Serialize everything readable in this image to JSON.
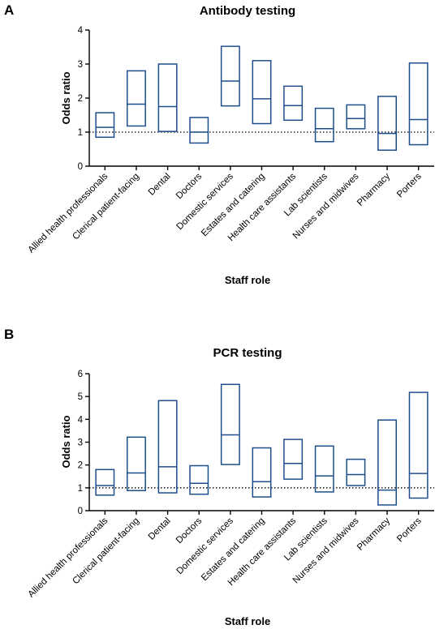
{
  "colors": {
    "box": "#1f4e8c",
    "axis": "#000000"
  },
  "chart_data": [
    {
      "type": "box",
      "panel_label": "A",
      "title": "Antibody testing",
      "xlabel": "Staff role",
      "ylabel": "Odds ratio",
      "ylim": [
        0,
        4
      ],
      "yticks": [
        "0",
        "1",
        "2",
        "3",
        "4"
      ],
      "reference_line": 1,
      "categories": [
        "Allied health professionals",
        "Clerical patient-facing",
        "Dental",
        "Doctors",
        "Domestic services",
        "Estates and catering",
        "Health care assistants",
        "Lab scientists",
        "Nurses and midwives",
        "Pharmacy",
        "Porters"
      ],
      "lower": [
        0.85,
        1.18,
        1.02,
        0.68,
        1.77,
        1.25,
        1.35,
        0.72,
        1.1,
        0.47,
        0.63
      ],
      "median": [
        1.14,
        1.82,
        1.75,
        1.0,
        2.5,
        1.98,
        1.78,
        1.1,
        1.4,
        0.96,
        1.37
      ],
      "upper": [
        1.57,
        2.8,
        3.0,
        1.43,
        3.52,
        3.1,
        2.35,
        1.7,
        1.8,
        2.05,
        3.03
      ]
    },
    {
      "type": "box",
      "panel_label": "B",
      "title": "PCR testing",
      "xlabel": "Staff role",
      "ylabel": "Odds ratio",
      "ylim": [
        0,
        6
      ],
      "yticks": [
        "0",
        "1",
        "2",
        "3",
        "4",
        "5",
        "6"
      ],
      "reference_line": 1,
      "categories": [
        "Allied health professionals",
        "Clerical patient-facing",
        "Dental",
        "Doctors",
        "Domestic services",
        "Estates and catering",
        "Health care assistants",
        "Lab scientists",
        "Nurses and midwives",
        "Pharmacy",
        "Porters"
      ],
      "lower": [
        0.68,
        0.88,
        0.78,
        0.72,
        2.02,
        0.6,
        1.38,
        0.82,
        1.1,
        0.25,
        0.55
      ],
      "median": [
        1.1,
        1.65,
        1.92,
        1.2,
        3.32,
        1.27,
        2.07,
        1.52,
        1.58,
        0.9,
        1.63
      ],
      "upper": [
        1.8,
        3.22,
        4.82,
        1.97,
        5.53,
        2.75,
        3.12,
        2.83,
        2.25,
        3.97,
        5.18
      ]
    }
  ]
}
